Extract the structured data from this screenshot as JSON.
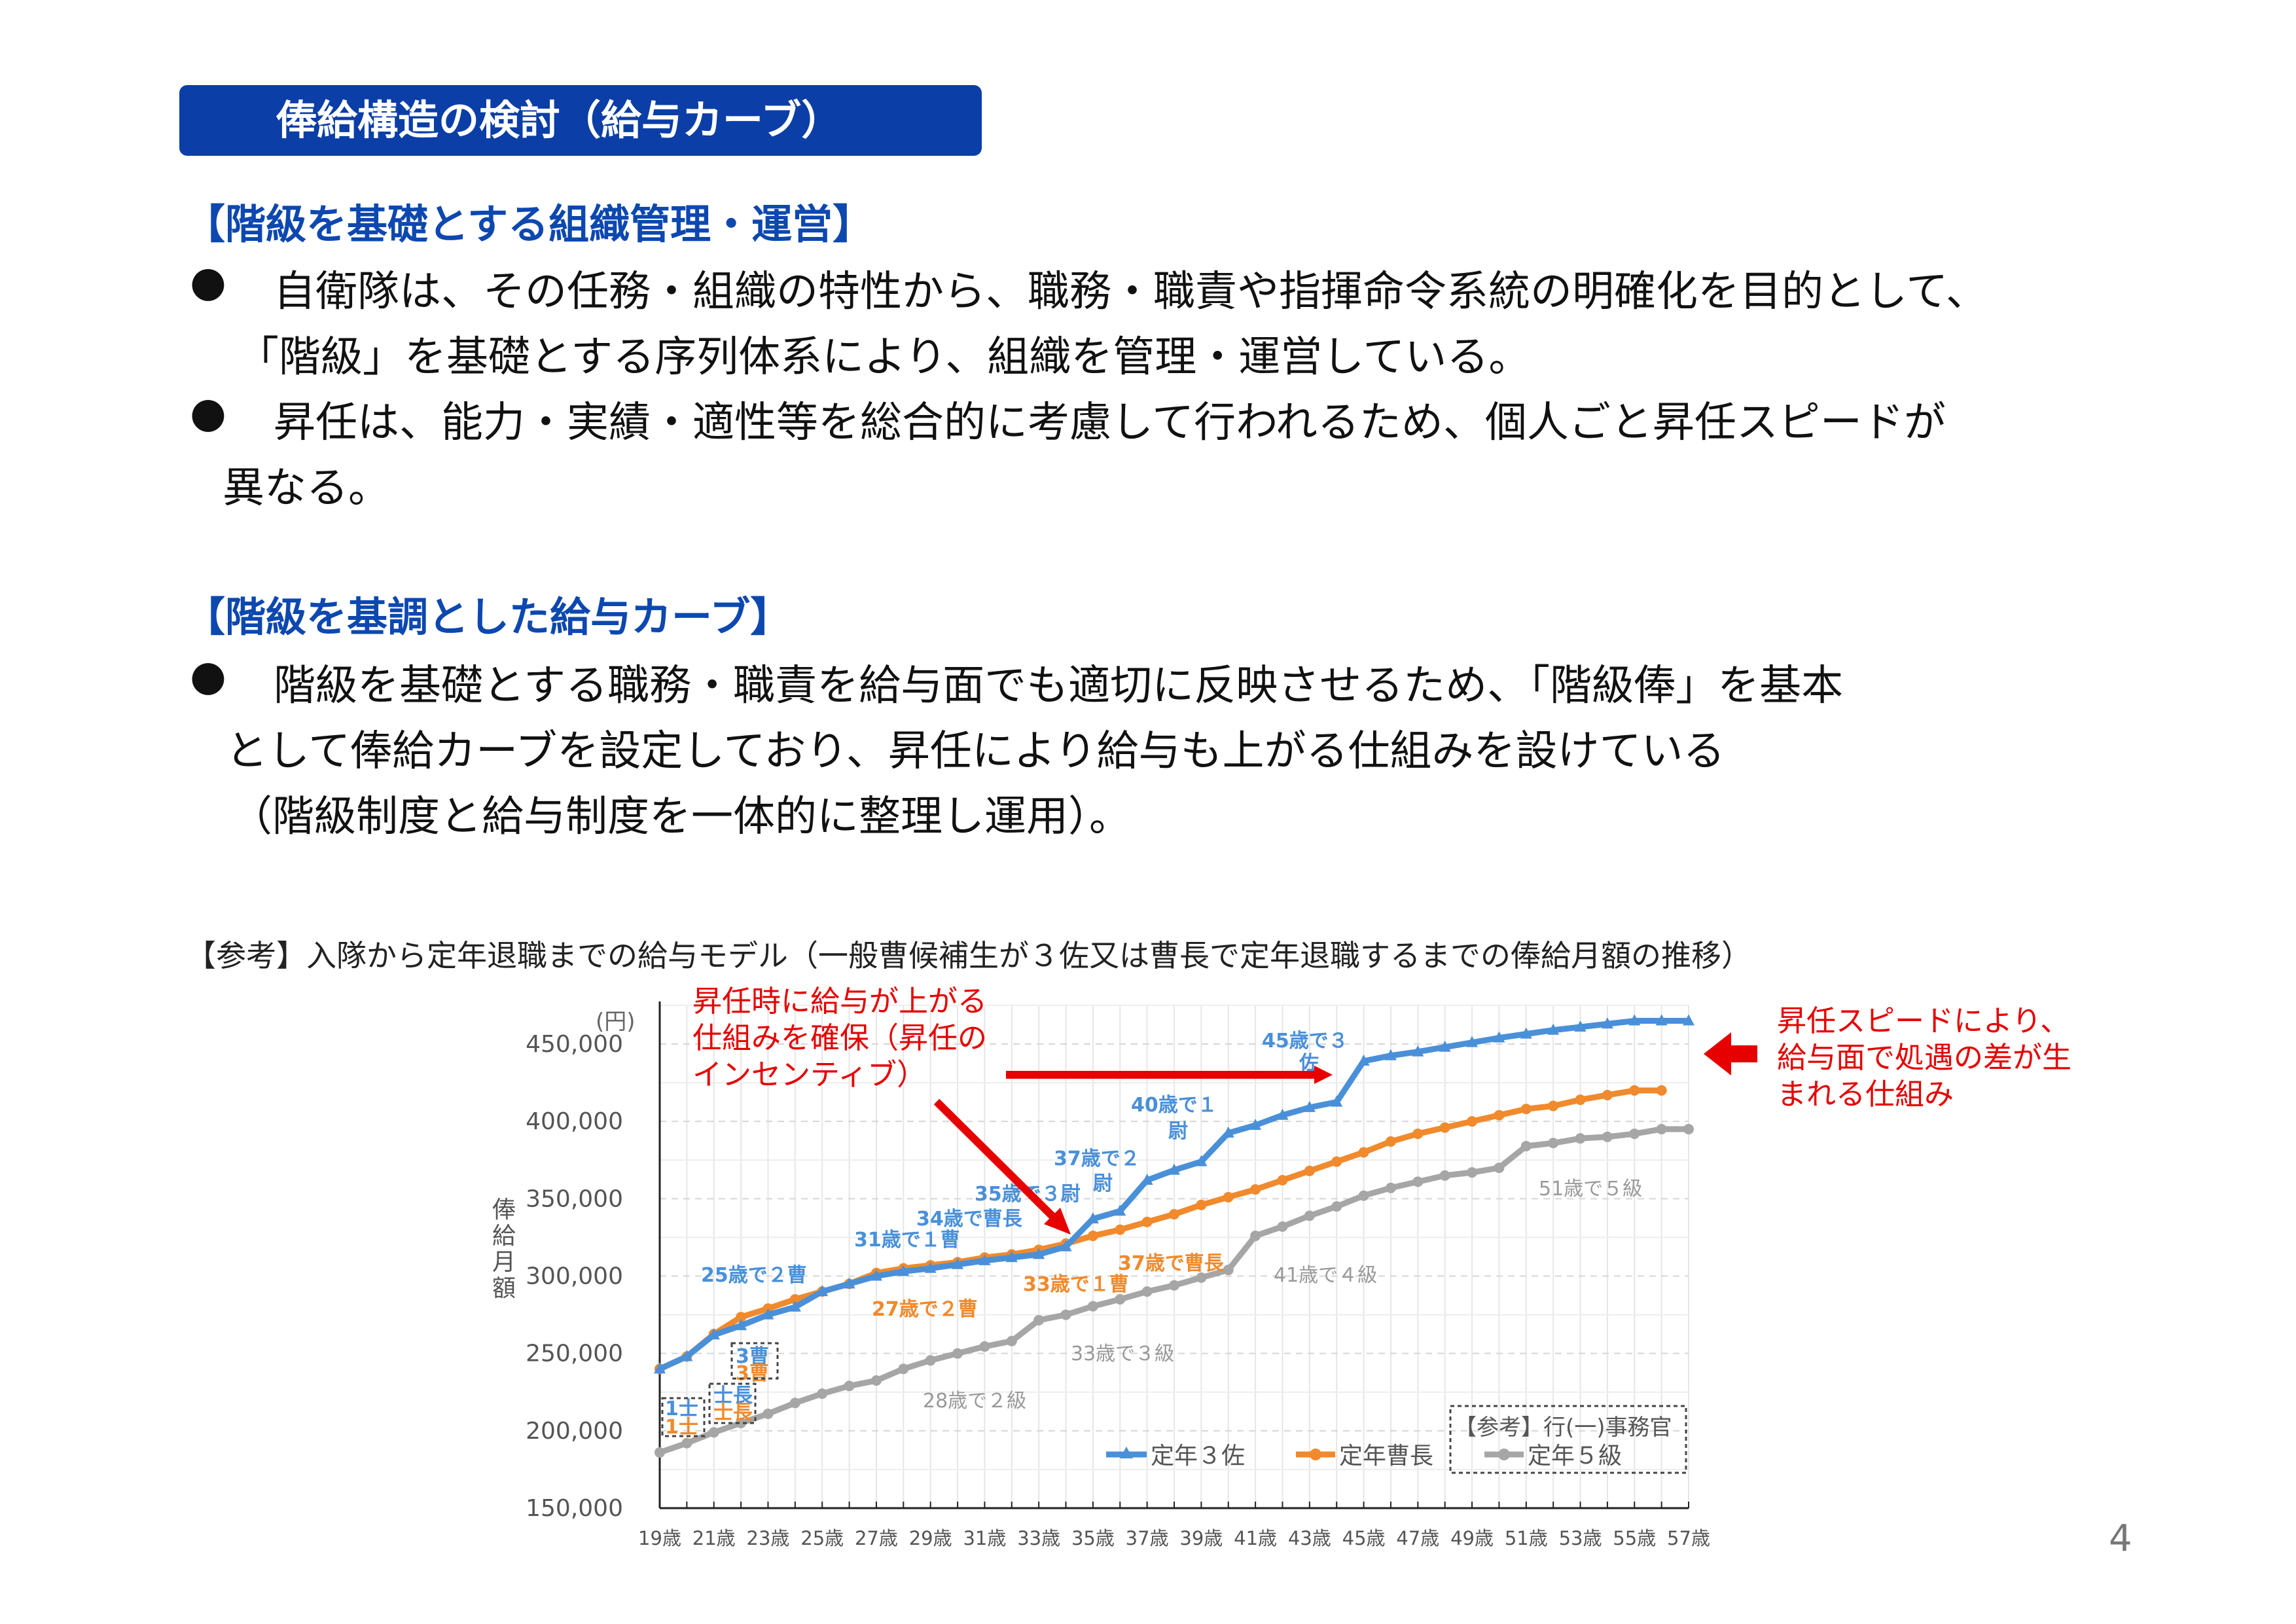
{
  "header": {
    "title": "俸給構造の検討（給与カーブ）"
  },
  "section1": {
    "heading": "【階級を基礎とする組織管理・運営】",
    "bullets": [
      {
        "lines": [
          "自衛隊は、その任務・組織の特性から、職務・職責や指揮命令系統の明確化を目的として、",
          "「階級」を基礎とする序列体系により、組織を管理・運営している。"
        ]
      },
      {
        "lines": [
          "昇任は、能力・実績・適性等を総合的に考慮して行われるため、個人ごと昇任スピードが",
          "異なる。"
        ]
      }
    ]
  },
  "section2": {
    "heading": "【階級を基調とした給与カーブ】",
    "bullets": [
      {
        "lines": [
          "階級を基礎とする職務・職責を給与面でも適切に反映させるため、「階級俸」を基本",
          "として俸給カーブを設定しており、昇任により給与も上がる仕組みを設けている",
          "（階級制度と給与制度を一体的に整理し運用）。"
        ]
      }
    ]
  },
  "bullet_symbol": "●",
  "reference_caption": "【参考】入隊から定年退職までの給与モデル（一般曹候補生が３佐又は曹長で定年退職するまでの俸給月額の推移）",
  "annotations": {
    "left_note": "昇任時に給与が上がる\n仕組みを確保（昇任の\nインセンティブ）",
    "right_note": "昇任スピードにより、\n給与面で処遇の差が生\nまれる仕組み"
  },
  "page_number": "4",
  "chart_data": {
    "type": "line",
    "title": "",
    "xlabel": "",
    "ylabel": "俸給月額",
    "yunit": "(円)",
    "ylim": [
      150000,
      450000
    ],
    "yticks": [
      150000,
      200000,
      250000,
      300000,
      350000,
      400000,
      450000
    ],
    "ytick_labels": [
      "150,000",
      "200,000",
      "250,000",
      "300,000",
      "350,000",
      "400,000",
      "450,000"
    ],
    "x": [
      19,
      20,
      21,
      22,
      23,
      24,
      25,
      26,
      27,
      28,
      29,
      30,
      31,
      32,
      33,
      34,
      35,
      36,
      37,
      38,
      39,
      40,
      41,
      42,
      43,
      44,
      45,
      46,
      47,
      48,
      49,
      50,
      51,
      52,
      53,
      54,
      55,
      56,
      57
    ],
    "xtick_labels": [
      "19歳",
      "21歳",
      "23歳",
      "25歳",
      "27歳",
      "29歳",
      "31歳",
      "33歳",
      "35歳",
      "37歳",
      "39歳",
      "41歳",
      "43歳",
      "45歳",
      "47歳",
      "49歳",
      "51歳",
      "53歳",
      "55歳",
      "57歳"
    ],
    "grid": true,
    "series": [
      {
        "name": "定年３佐",
        "color": "#4a90d9",
        "marker": "triangle",
        "values": [
          240000,
          248000,
          262000,
          268000,
          275000,
          280000,
          290000,
          295000,
          300000,
          303000,
          305000,
          307500,
          310000,
          312000,
          314000,
          319000,
          337000,
          342000,
          362000,
          368500,
          374000,
          392500,
          397500,
          404000,
          409000,
          412500,
          439000,
          442500,
          445000,
          448000,
          451000,
          454000,
          456500,
          459000,
          461000,
          463000,
          465000,
          465000,
          465000
        ]
      },
      {
        "name": "定年曹長",
        "color": "#f08a2c",
        "marker": "circle",
        "values": [
          240000,
          248000,
          262500,
          273500,
          279000,
          285000,
          290000,
          295000,
          302000,
          305000,
          307000,
          309000,
          312000,
          314000,
          317000,
          321000,
          326000,
          330000,
          335000,
          340000,
          346000,
          351000,
          356000,
          362000,
          368000,
          374000,
          380000,
          387000,
          392000,
          396000,
          400000,
          404000,
          408000,
          410000,
          414000,
          417000,
          420000,
          420000,
          null
        ]
      },
      {
        "name": "定年５級",
        "color": "#a6a6a6",
        "marker": "circle",
        "values": [
          186000,
          192000,
          199000,
          205000,
          211000,
          218000,
          224000,
          229000,
          232500,
          240000,
          245500,
          250000,
          254500,
          258000,
          271500,
          275000,
          280500,
          285000,
          290000,
          294000,
          299000,
          304000,
          326000,
          332000,
          339000,
          345000,
          352000,
          357000,
          361000,
          365000,
          367000,
          370000,
          384000,
          386000,
          389000,
          390000,
          392000,
          395000,
          395000
        ]
      }
    ],
    "legend": {
      "placement": "bottom-right",
      "reference_label": "【参考】行(一)事務官"
    },
    "point_labels": {
      "blue": [
        "25歳で２曹",
        "31歳で１曹",
        "34歳で曹長",
        "35歳で３尉",
        "37歳で２",
        "尉",
        "40歳で１",
        "尉",
        "45歳で３",
        "佐",
        "3曹",
        "士長",
        "1士"
      ],
      "orange": [
        "27歳で２曹",
        "33歳で１曹",
        "37歳で曹長",
        "3曹",
        "士長",
        "1士"
      ],
      "gray": [
        "28歳で２級",
        "33歳で３級",
        "41歳で４級",
        "51歳で５級"
      ]
    }
  }
}
